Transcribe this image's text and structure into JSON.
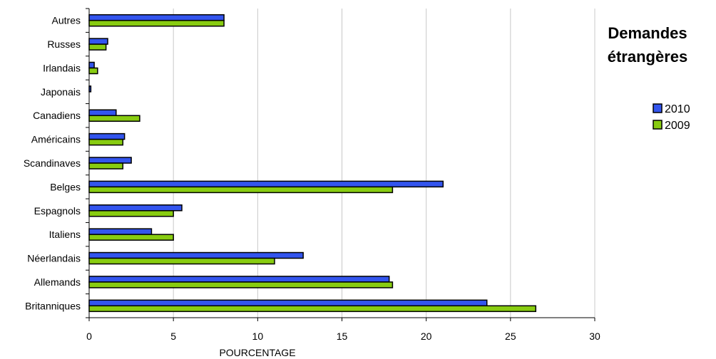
{
  "chart_data": {
    "type": "bar",
    "orientation": "horizontal",
    "title": "Demandes étrangères",
    "title_lines": [
      "Demandes",
      "étrangères"
    ],
    "xlabel": "POURCENTAGE",
    "ylabel": "",
    "xlim": [
      0,
      30
    ],
    "xticks": [
      0,
      5,
      10,
      15,
      20,
      25,
      30
    ],
    "grid": true,
    "legend_position": "right",
    "categories": [
      "Autres",
      "Russes",
      "Irlandais",
      "Japonais",
      "Canadiens",
      "Américains",
      "Scandinaves",
      "Belges",
      "Espagnols",
      "Italiens",
      "Néerlandais",
      "Allemands",
      "Britanniques"
    ],
    "series": [
      {
        "name": "2010",
        "color": "#3355ee",
        "values": [
          8.0,
          1.1,
          0.3,
          0.1,
          1.6,
          2.1,
          2.5,
          21.0,
          5.5,
          3.7,
          12.7,
          17.8,
          23.6
        ]
      },
      {
        "name": "2009",
        "color": "#88cc11",
        "values": [
          8.0,
          1.0,
          0.5,
          0.0,
          3.0,
          2.0,
          2.0,
          18.0,
          5.0,
          5.0,
          11.0,
          18.0,
          26.5
        ]
      }
    ]
  }
}
